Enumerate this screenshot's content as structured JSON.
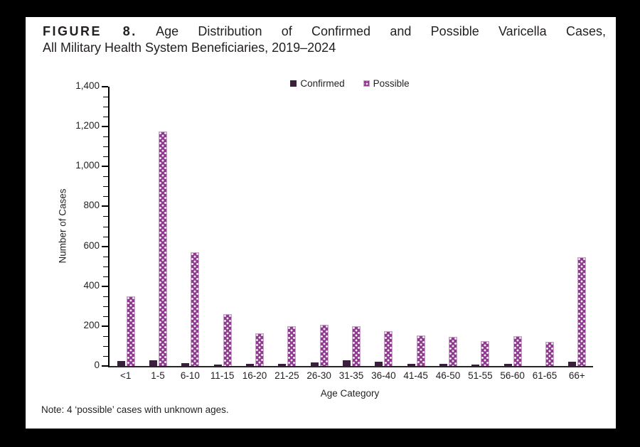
{
  "figure": {
    "label": "FIGURE 8.",
    "title_rest": "Age Distribution of Confirmed and Possible Varicella Cases,",
    "title_line2": "All Military Health System Beneficiaries, 2019–2024",
    "note": "Note: 4 ‘possible’ cases with unknown ages."
  },
  "colors": {
    "confirmed": "#3c1e3e",
    "possible": "#8e3a8e",
    "possible_border": "#c9a2c9",
    "axis": "#000000",
    "text": "#231f20",
    "panel_bg": "#ffffff",
    "frame_bg": "#000000"
  },
  "chart_data": {
    "type": "bar",
    "title": "",
    "xlabel": "Age Category",
    "ylabel": "Number of Cases",
    "ylim": [
      0,
      1400
    ],
    "ytick_step": 200,
    "minor_tick_step": 50,
    "grid": false,
    "legend_position": "top-center",
    "categories": [
      "<1",
      "1-5",
      "6-10",
      "11-15",
      "16-20",
      "21-25",
      "26-30",
      "31-35",
      "36-40",
      "41-45",
      "46-50",
      "51-55",
      "56-60",
      "61-65",
      "66+"
    ],
    "series": [
      {
        "name": "Confirmed",
        "values": [
          25,
          30,
          15,
          8,
          9,
          12,
          18,
          30,
          22,
          12,
          10,
          6,
          10,
          0,
          20
        ]
      },
      {
        "name": "Possible",
        "values": [
          350,
          1175,
          570,
          260,
          165,
          200,
          205,
          200,
          175,
          155,
          145,
          125,
          150,
          120,
          545
        ]
      }
    ]
  }
}
